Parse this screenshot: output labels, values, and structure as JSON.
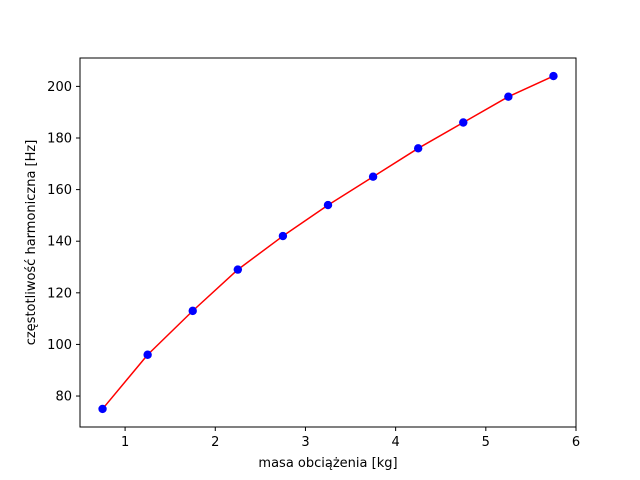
{
  "chart_data": {
    "type": "line",
    "xlabel": "masa obciążenia [kg]",
    "ylabel": "częstotliwość harmoniczna [Hz]",
    "xlim": [
      0.5,
      6.0
    ],
    "ylim": [
      68,
      211
    ],
    "xticks": [
      1,
      2,
      3,
      4,
      5,
      6
    ],
    "yticks": [
      80,
      100,
      120,
      140,
      160,
      180,
      200
    ],
    "grid": false,
    "series": [
      {
        "x": [
          0.75,
          1.25,
          1.75,
          2.25,
          2.75,
          3.25,
          3.75,
          4.25,
          4.75,
          5.25,
          5.75
        ],
        "y": [
          75,
          96,
          113,
          129,
          142,
          154,
          165,
          176,
          186,
          196,
          204
        ],
        "line_color": "#ff0000",
        "marker_color": "#0000ff",
        "marker": "circle"
      }
    ]
  }
}
